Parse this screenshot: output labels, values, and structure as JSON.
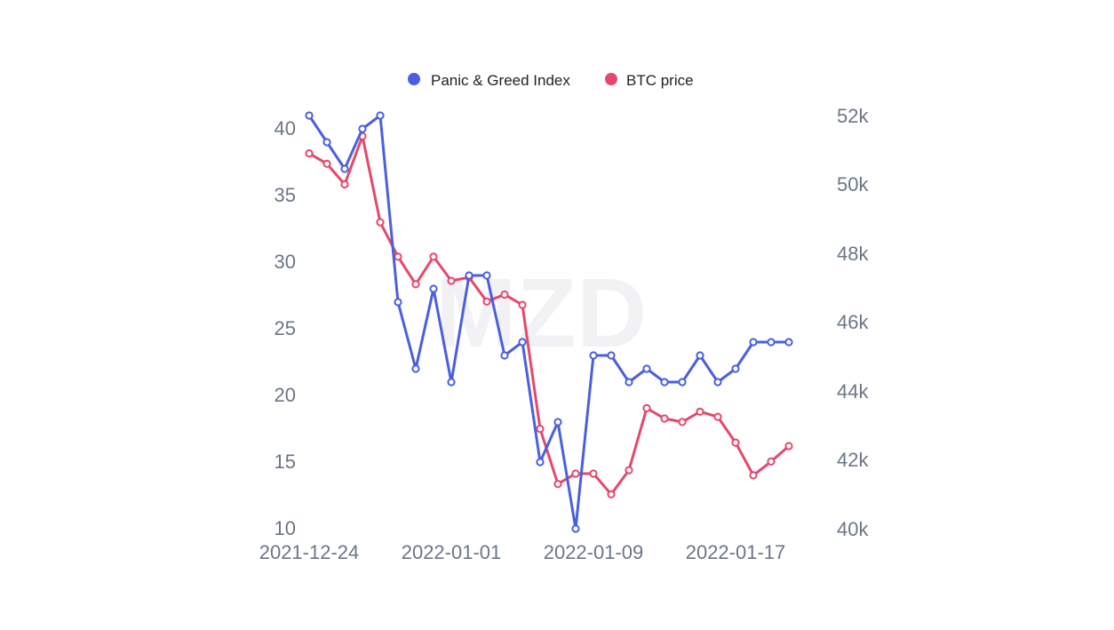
{
  "chart_data": {
    "type": "line",
    "x_tick_labels": [
      "2021-12-24",
      "2022-01-01",
      "2022-01-09",
      "2022-01-17"
    ],
    "x": [
      "2021-12-24",
      "2021-12-25",
      "2021-12-26",
      "2021-12-27",
      "2021-12-28",
      "2021-12-29",
      "2021-12-30",
      "2021-12-31",
      "2022-01-01",
      "2022-01-02",
      "2022-01-03",
      "2022-01-04",
      "2022-01-05",
      "2022-01-06",
      "2022-01-07",
      "2022-01-08",
      "2022-01-09",
      "2022-01-10",
      "2022-01-11",
      "2022-01-12",
      "2022-01-13",
      "2022-01-14",
      "2022-01-15",
      "2022-01-16",
      "2022-01-17",
      "2022-01-18",
      "2022-01-19",
      "2022-01-20"
    ],
    "series": [
      {
        "name": "Panic & Greed Index",
        "axis": "left",
        "color": "#4a5fe0",
        "values": [
          41,
          39,
          37,
          40,
          41,
          27,
          22,
          28,
          21,
          29,
          29,
          23,
          24,
          15,
          18,
          10,
          23,
          23,
          21,
          22,
          21,
          21,
          23,
          21,
          22,
          24,
          24,
          24
        ]
      },
      {
        "name": "BTC price",
        "axis": "right",
        "color": "#e5486b",
        "values": [
          50900,
          50600,
          50000,
          51400,
          48900,
          47900,
          47100,
          47900,
          47200,
          47300,
          46600,
          46800,
          46500,
          42900,
          41300,
          41600,
          41600,
          41000,
          41700,
          43500,
          43200,
          43100,
          43400,
          43250,
          42500,
          41550,
          41950,
          42400
        ]
      }
    ],
    "y_left": {
      "ticks": [
        "40",
        "35",
        "30",
        "25",
        "20",
        "15",
        "10"
      ],
      "range": [
        10,
        41
      ]
    },
    "y_right": {
      "ticks": [
        "52k",
        "50k",
        "48k",
        "46k",
        "44k",
        "42k",
        "40k"
      ],
      "range": [
        40000,
        52000
      ]
    },
    "legend": {
      "placement": "top-center",
      "items": [
        "Panic & Greed Index",
        "BTC price"
      ]
    },
    "grid": false,
    "watermark": "MZD"
  }
}
